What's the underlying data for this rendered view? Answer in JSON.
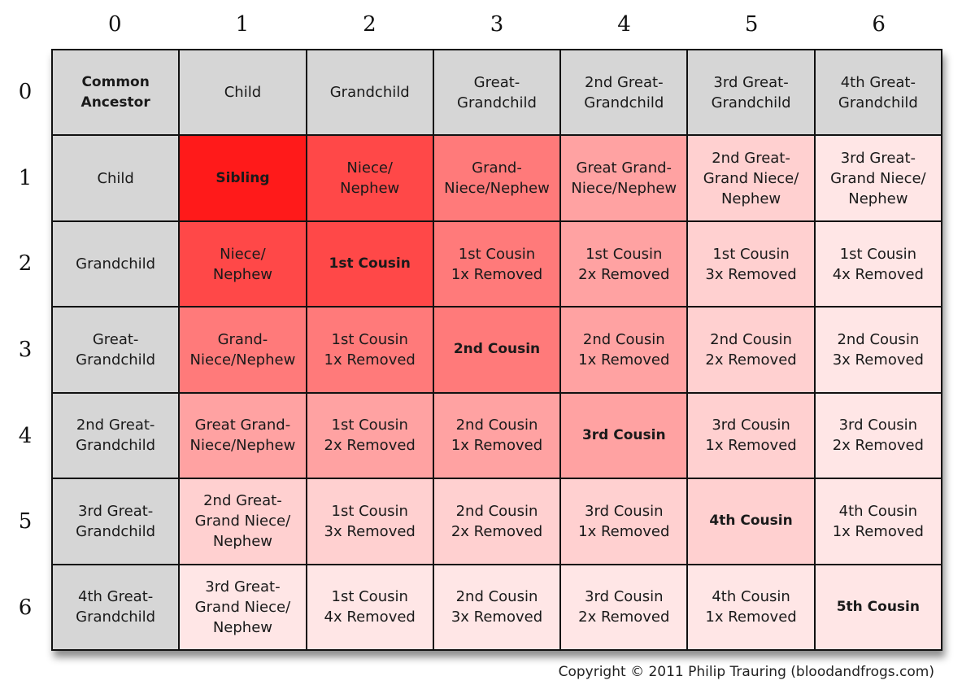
{
  "col_headers": [
    "0",
    "1",
    "2",
    "3",
    "4",
    "5",
    "6"
  ],
  "row_headers": [
    "0",
    "1",
    "2",
    "3",
    "4",
    "5",
    "6"
  ],
  "cells": [
    [
      "Common\nAncestor",
      "Child",
      "Grandchild",
      "Great-\nGrandchild",
      "2nd Great-\nGrandchild",
      "3rd Great-\nGrandchild",
      "4th Great-\nGrandchild"
    ],
    [
      "Child",
      "Sibling",
      "Niece/\nNephew",
      "Grand-\nNiece/Nephew",
      "Great Grand-\nNiece/Nephew",
      "2nd Great-\nGrand Niece/\nNephew",
      "3rd Great-\nGrand Niece/\nNephew"
    ],
    [
      "Grandchild",
      "Niece/\nNephew",
      "1st Cousin",
      "1st Cousin\n1x Removed",
      "1st Cousin\n2x Removed",
      "1st Cousin\n3x Removed",
      "1st Cousin\n4x Removed"
    ],
    [
      "Great-\nGrandchild",
      "Grand-\nNiece/Nephew",
      "1st Cousin\n1x Removed",
      "2nd Cousin",
      "2nd Cousin\n1x Removed",
      "2nd Cousin\n2x Removed",
      "2nd Cousin\n3x Removed"
    ],
    [
      "2nd Great-\nGrandchild",
      "Great Grand-\nNiece/Nephew",
      "1st Cousin\n2x Removed",
      "2nd Cousin\n1x Removed",
      "3rd Cousin",
      "3rd Cousin\n1x Removed",
      "3rd Cousin\n2x Removed"
    ],
    [
      "3rd Great-\nGrandchild",
      "2nd Great-\nGrand Niece/\nNephew",
      "1st Cousin\n3x Removed",
      "2nd Cousin\n2x Removed",
      "3rd Cousin\n1x Removed",
      "4th Cousin",
      "4th Cousin\n1x Removed"
    ],
    [
      "4th Great-\nGrandchild",
      "3rd Great-\nGrand Niece/\nNephew",
      "1st Cousin\n4x Removed",
      "2nd Cousin\n3x Removed",
      "3rd Cousin\n2x Removed",
      "4th Cousin\n1x Removed",
      "5th Cousin"
    ]
  ],
  "colors": {
    "header_gray": "#d6d6d6",
    "sibling": "#ff1a1a",
    "niece_nephew_1st_cousin": "#ff4848",
    "grand_niece_2nd_cousin": "#ff7a7a",
    "great_grand_niece_3rd_cousin": "#ffa2a2",
    "second_great_4th_cousin": "#ffd0d0",
    "third_great_5th_cousin": "#ffe6e6"
  },
  "copyright": "Copyright © 2011 Philip Trauring (bloodandfrogs.com)"
}
